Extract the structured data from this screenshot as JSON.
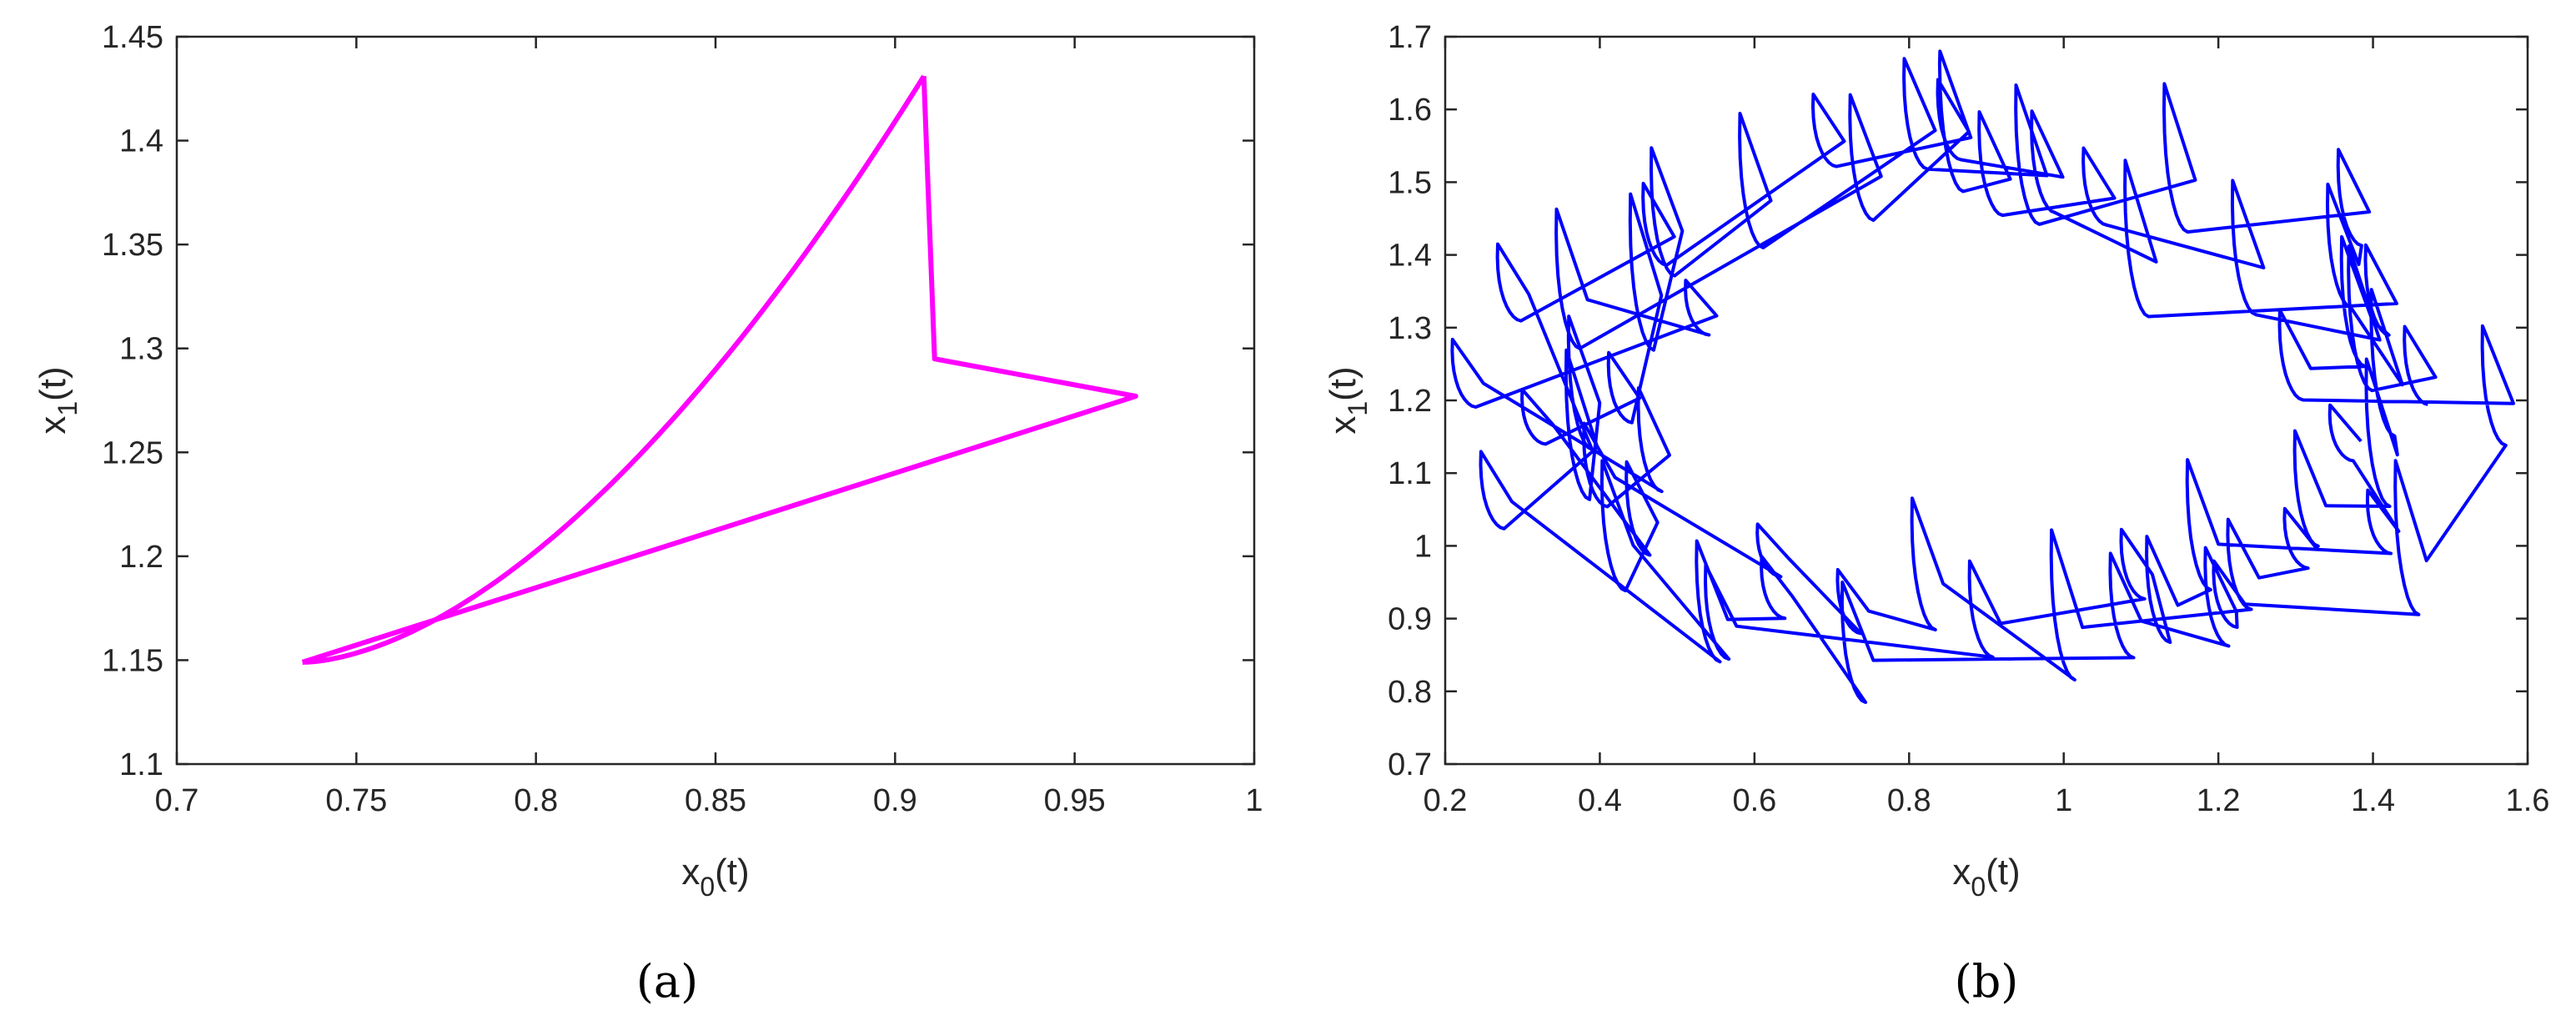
{
  "chart_data": [
    {
      "type": "line",
      "panel_label": "(a)",
      "xlabel": {
        "main": "x",
        "sub": "0",
        "suffix": "(t)"
      },
      "ylabel": {
        "main": "x",
        "sub": "1",
        "suffix": "(t)"
      },
      "xlim": [
        0.7,
        1.0
      ],
      "ylim": [
        1.1,
        1.45
      ],
      "xticks": [
        "0.7",
        "0.75",
        "0.8",
        "0.85",
        "0.9",
        "0.95",
        "1"
      ],
      "yticks": [
        "1.1",
        "1.15",
        "1.2",
        "1.25",
        "1.3",
        "1.35",
        "1.4",
        "1.45"
      ],
      "grid": false,
      "color": "#ff00ff",
      "curve": {
        "x_start": 0.735,
        "y_start": 1.149,
        "x_end": 0.908,
        "y_end": 1.431,
        "power": 1.7
      },
      "series": [
        {
          "x": [
            0.908,
            0.911,
            0.967,
            0.735
          ],
          "y": [
            1.431,
            1.295,
            1.277,
            1.149
          ]
        }
      ]
    },
    {
      "type": "line",
      "panel_label": "(b)",
      "xlabel": {
        "main": "x",
        "sub": "0",
        "suffix": "(t)"
      },
      "ylabel": {
        "main": "x",
        "sub": "1",
        "suffix": "(t)"
      },
      "xlim": [
        0.2,
        1.6
      ],
      "ylim": [
        0.7,
        1.7
      ],
      "xticks": [
        "0.2",
        "0.4",
        "0.6",
        "0.8",
        "1",
        "1.2",
        "1.4",
        "1.6"
      ],
      "yticks": [
        "0.7",
        "0.8",
        "0.9",
        "1",
        "1.1",
        "1.2",
        "1.3",
        "1.4",
        "1.5",
        "1.6",
        "1.7"
      ],
      "grid": false,
      "color": "#0000ff",
      "trajectory": {
        "center": [
          0.9,
          1.2
        ],
        "radius_x": 0.55,
        "radius_y": 0.3,
        "jumps": 60,
        "rise_amplitude": 0.12,
        "cycles": 3
      }
    }
  ]
}
